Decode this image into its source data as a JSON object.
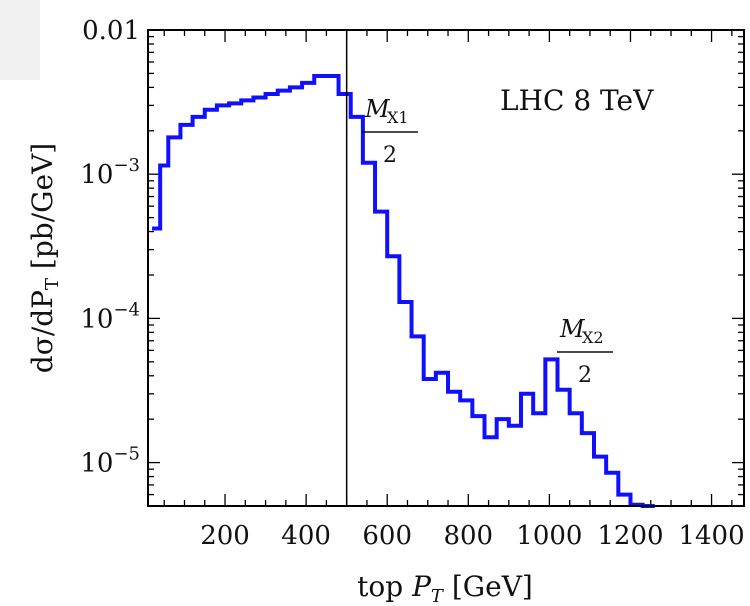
{
  "chart_data": {
    "type": "line",
    "step": true,
    "log_y": true,
    "xlim": [
      10,
      1480
    ],
    "ylim": [
      5e-06,
      0.01
    ],
    "xticks": [
      200,
      400,
      600,
      800,
      1000,
      1200,
      1400
    ],
    "xtick_labels": [
      "200",
      "400",
      "600",
      "800",
      "1000",
      "1200",
      "1400"
    ],
    "yticks": [
      0.01,
      0.001,
      0.0001,
      1e-05
    ],
    "ytick_labels": [
      {
        "base": "0.01",
        "exp": ""
      },
      {
        "base": "10",
        "exp": "−3"
      },
      {
        "base": "10",
        "exp": "−4"
      },
      {
        "base": "10",
        "exp": "−5"
      }
    ],
    "xlabel": {
      "prefix": "top ",
      "var": "P",
      "sub": "T",
      "suffix": " [GeV]"
    },
    "ylabel": {
      "part1": "dσ/dP",
      "sub": "T",
      "part2": " [pb/GeV]"
    },
    "annotation_label": "LHC 8 TeV",
    "vertical_line_x": 500,
    "mass_labels": [
      {
        "num_var": "M",
        "num_sub": "X1",
        "den": "2"
      },
      {
        "num_var": "M",
        "num_sub": "X2",
        "den": "2"
      }
    ],
    "series": [
      {
        "color": "#1010ff",
        "bin_edges": [
          20,
          40,
          60,
          90,
          120,
          150,
          180,
          210,
          240,
          270,
          300,
          330,
          360,
          390,
          420,
          450,
          480,
          510,
          540,
          570,
          600,
          630,
          660,
          690,
          720,
          750,
          780,
          810,
          840,
          870,
          900,
          930,
          960,
          990,
          1020,
          1050,
          1080,
          1110,
          1140,
          1170,
          1200,
          1230,
          1260
        ],
        "values": [
          0.00042,
          0.00115,
          0.0018,
          0.0022,
          0.0025,
          0.0028,
          0.003,
          0.0031,
          0.00325,
          0.0034,
          0.0036,
          0.0038,
          0.004,
          0.0043,
          0.0048,
          0.0048,
          0.0036,
          0.0025,
          0.0012,
          0.00055,
          0.00027,
          0.00013,
          7.5e-05,
          3.8e-05,
          4.2e-05,
          3.1e-05,
          2.7e-05,
          2.1e-05,
          1.5e-05,
          2e-05,
          1.8e-05,
          3e-05,
          2.2e-05,
          5.2e-05,
          3.2e-05,
          2.2e-05,
          1.6e-05,
          1.1e-05,
          8.5e-06,
          6e-06,
          5.1e-06,
          5e-06
        ]
      }
    ]
  }
}
